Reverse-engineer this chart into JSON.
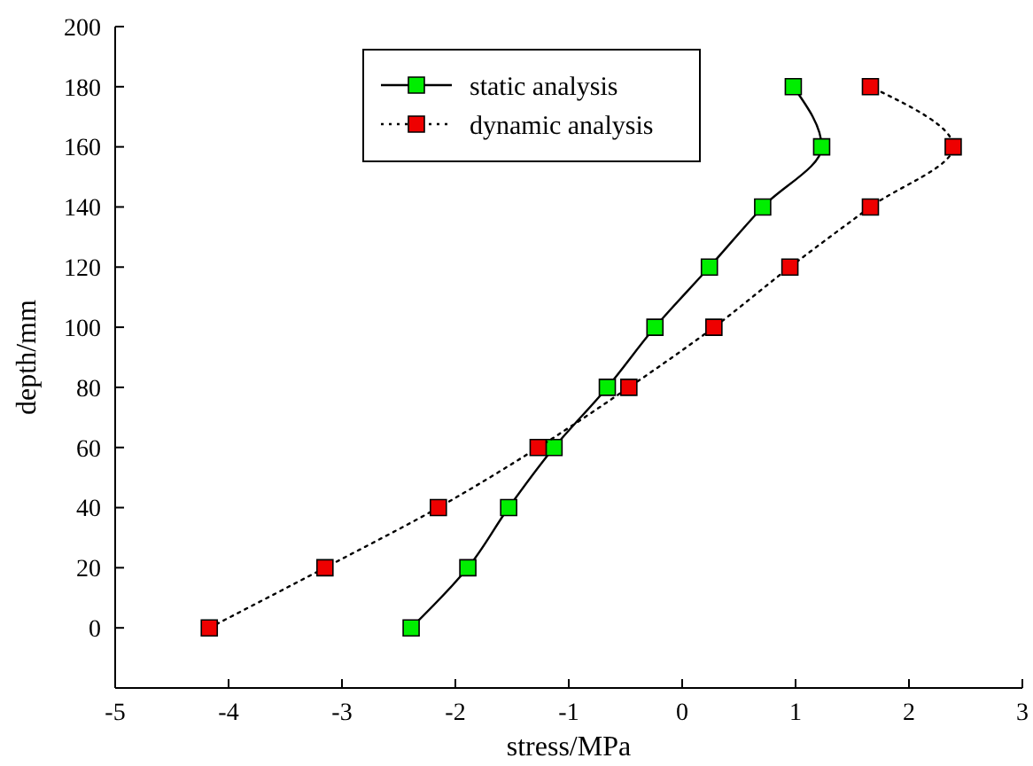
{
  "chart_data": {
    "type": "line",
    "xlabel": "stress/MPa",
    "ylabel": "depth/mm",
    "xlim": [
      -5,
      3
    ],
    "xticks": [
      -5,
      -4,
      -3,
      -2,
      -1,
      0,
      1,
      2,
      3
    ],
    "ylim": [
      -20,
      200
    ],
    "yticks": [
      0,
      20,
      40,
      60,
      80,
      100,
      120,
      140,
      160,
      180,
      200
    ],
    "grid": false,
    "legend": "top",
    "marker": "square",
    "series": [
      {
        "name": "static analysis",
        "color": "#00ee00",
        "line_style": "solid",
        "x": [
          -2.39,
          -1.89,
          -1.53,
          -1.13,
          -0.66,
          -0.24,
          0.24,
          0.71,
          1.23,
          0.98
        ],
        "values": [
          0,
          20,
          40,
          60,
          80,
          100,
          120,
          140,
          160,
          180
        ]
      },
      {
        "name": "dynamic analysis",
        "color": "#ee0000",
        "line_style": "dotted",
        "x": [
          -4.17,
          -3.15,
          -2.15,
          -1.27,
          -0.47,
          0.28,
          0.95,
          1.66,
          2.39,
          1.66
        ],
        "values": [
          0,
          20,
          40,
          60,
          80,
          100,
          120,
          140,
          160,
          180
        ]
      }
    ]
  }
}
